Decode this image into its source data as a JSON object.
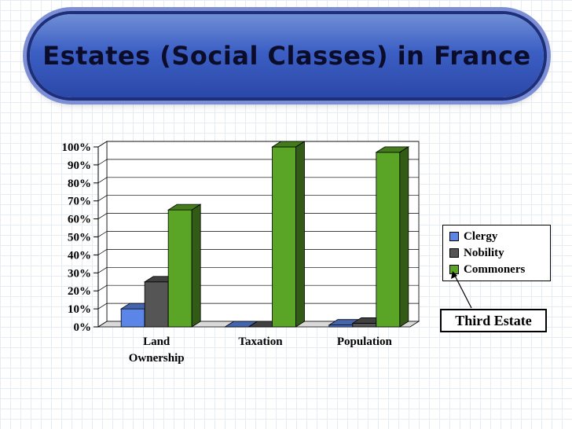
{
  "title": "Estates (Social Classes) in France",
  "chart_data": {
    "type": "bar",
    "categories": [
      "Land Ownership",
      "Taxation",
      "Population"
    ],
    "series": [
      {
        "name": "Clergy",
        "values": [
          10,
          0,
          1
        ],
        "color": "#5b86e8"
      },
      {
        "name": "Nobility",
        "values": [
          25,
          0,
          2
        ],
        "color": "#555555"
      },
      {
        "name": "Commoners",
        "values": [
          65,
          100,
          97
        ],
        "color": "#5ba526"
      }
    ],
    "ylim": [
      0,
      100
    ],
    "yticks": [
      "0%",
      "10%",
      "20%",
      "30%",
      "40%",
      "50%",
      "60%",
      "70%",
      "80%",
      "90%",
      "100%"
    ],
    "grid": true,
    "legend_position": "right"
  },
  "callout": {
    "text": "Third Estate",
    "points_to": "Commoners"
  }
}
